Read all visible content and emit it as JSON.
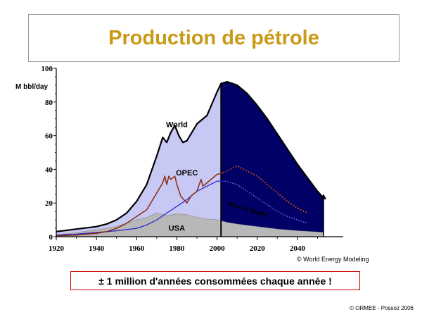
{
  "title": "Production de pétrole",
  "chart_data": {
    "type": "area",
    "ylabel": "M bbl/day",
    "xlim": [
      1920,
      2060
    ],
    "ylim": [
      0,
      100
    ],
    "x_ticks": [
      "1920",
      "1940",
      "1960",
      "1980",
      "2000",
      "2020",
      "2040"
    ],
    "y_ticks": [
      "0",
      "20",
      "40",
      "60",
      "80",
      "100"
    ],
    "grid": false,
    "series": [
      {
        "name": "World",
        "style": "filled area (historical, light lavender) continuing as forecast (dark navy)",
        "colors": {
          "historical_fill": "#c8c8f4",
          "forecast_fill": "#000066",
          "outline": "#000000"
        },
        "historical": [
          [
            1920,
            3
          ],
          [
            1930,
            4.5
          ],
          [
            1940,
            6
          ],
          [
            1945,
            7.5
          ],
          [
            1950,
            10
          ],
          [
            1955,
            14
          ],
          [
            1960,
            21
          ],
          [
            1965,
            31
          ],
          [
            1970,
            48
          ],
          [
            1973,
            59
          ],
          [
            1975,
            56
          ],
          [
            1977,
            62
          ],
          [
            1979,
            66
          ],
          [
            1981,
            60
          ],
          [
            1983,
            56
          ],
          [
            1985,
            57
          ],
          [
            1990,
            67
          ],
          [
            1995,
            72
          ],
          [
            2000,
            86
          ],
          [
            2002,
            91
          ]
        ],
        "forecast": [
          [
            2002,
            91
          ],
          [
            2005,
            92
          ],
          [
            2010,
            90
          ],
          [
            2015,
            85
          ],
          [
            2020,
            78
          ],
          [
            2025,
            70
          ],
          [
            2030,
            61
          ],
          [
            2035,
            52
          ],
          [
            2040,
            43
          ],
          [
            2045,
            35
          ],
          [
            2050,
            27
          ],
          [
            2053,
            23
          ]
        ]
      },
      {
        "name": "OPEC",
        "colors": {
          "line": "#8b2a14"
        },
        "historical": [
          [
            1920,
            0.5
          ],
          [
            1930,
            1
          ],
          [
            1940,
            2
          ],
          [
            1945,
            3
          ],
          [
            1950,
            5
          ],
          [
            1955,
            8
          ],
          [
            1960,
            12
          ],
          [
            1965,
            16
          ],
          [
            1970,
            26
          ],
          [
            1973,
            32
          ],
          [
            1974,
            36
          ],
          [
            1975,
            31
          ],
          [
            1976,
            36
          ],
          [
            1977,
            34
          ],
          [
            1978,
            35
          ],
          [
            1979,
            36
          ],
          [
            1980,
            31
          ],
          [
            1982,
            24
          ],
          [
            1985,
            20
          ],
          [
            1987,
            24
          ],
          [
            1990,
            27
          ],
          [
            1992,
            34
          ],
          [
            1993,
            30
          ],
          [
            1995,
            32
          ],
          [
            2000,
            37
          ],
          [
            2003,
            38
          ]
        ],
        "forecast": [
          [
            2003,
            38
          ],
          [
            2005,
            39
          ],
          [
            2008,
            41
          ],
          [
            2010,
            42
          ],
          [
            2015,
            39
          ],
          [
            2020,
            36
          ],
          [
            2025,
            31
          ],
          [
            2030,
            26
          ],
          [
            2035,
            21
          ],
          [
            2040,
            17
          ],
          [
            2045,
            14
          ]
        ]
      },
      {
        "name": "Rest of World",
        "colors": {
          "line": "#2222cc"
        },
        "historical": [
          [
            1920,
            1
          ],
          [
            1930,
            1.5
          ],
          [
            1940,
            2.5
          ],
          [
            1950,
            3.5
          ],
          [
            1960,
            5
          ],
          [
            1965,
            7
          ],
          [
            1970,
            10
          ],
          [
            1975,
            14
          ],
          [
            1980,
            18
          ],
          [
            1985,
            22
          ],
          [
            1990,
            27
          ],
          [
            1995,
            30
          ],
          [
            2000,
            33
          ],
          [
            2004,
            33
          ]
        ],
        "forecast": [
          [
            2004,
            33
          ],
          [
            2010,
            31
          ],
          [
            2015,
            27
          ],
          [
            2020,
            23
          ],
          [
            2025,
            19
          ],
          [
            2030,
            15
          ],
          [
            2035,
            12
          ],
          [
            2040,
            10
          ],
          [
            2045,
            8
          ]
        ]
      },
      {
        "name": "USA",
        "style": "filled area (gray)",
        "colors": {
          "fill": "#b8b8b8"
        },
        "points": [
          [
            1920,
            1
          ],
          [
            1930,
            2.5
          ],
          [
            1940,
            4
          ],
          [
            1950,
            6
          ],
          [
            1955,
            8
          ],
          [
            1960,
            10
          ],
          [
            1965,
            11.5
          ],
          [
            1970,
            14
          ],
          [
            1975,
            12.5
          ],
          [
            1980,
            13.5
          ],
          [
            1985,
            13.2
          ],
          [
            1990,
            11.5
          ],
          [
            1995,
            10.5
          ],
          [
            2000,
            10
          ],
          [
            2005,
            8.5
          ],
          [
            2010,
            7.5
          ],
          [
            2020,
            6
          ],
          [
            2030,
            4.5
          ],
          [
            2040,
            3.5
          ],
          [
            2050,
            2.8
          ],
          [
            2053,
            2.6
          ]
        ]
      }
    ],
    "labels": {
      "world": "World",
      "opec": "OPEC",
      "usa": "USA",
      "rest": "Rest of World"
    }
  },
  "credits": {
    "source": "© World Energy Modeling",
    "author": "© ORMEE - Possoz 2006"
  },
  "message": "± 1 million d'années consommées chaque année !"
}
